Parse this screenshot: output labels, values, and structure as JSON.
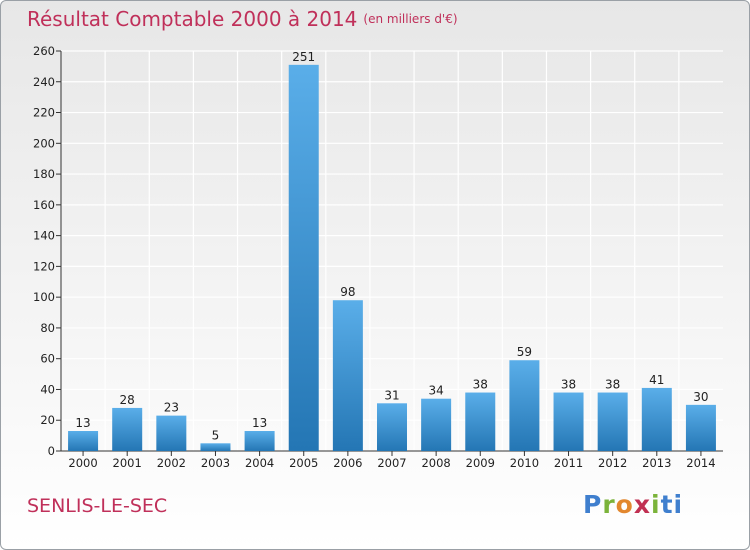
{
  "header": {
    "title": "Résultat Comptable 2000 à 2014",
    "unit": "(en milliers d'€)"
  },
  "footer": {
    "town": "SENLIS-LE-SEC",
    "logo_letters": [
      "P",
      "r",
      "o",
      "x",
      "i",
      "ti"
    ]
  },
  "colors": {
    "bar_top": "#5aaee9",
    "bar_bottom": "#2476b4",
    "title": "#c0305a",
    "grid": "#ffffff"
  },
  "chart_data": {
    "type": "bar",
    "title": "Résultat Comptable 2000 à 2014",
    "subtitle": "(en milliers d'€)",
    "xlabel": "",
    "ylabel": "",
    "categories": [
      "2000",
      "2001",
      "2002",
      "2003",
      "2004",
      "2005",
      "2006",
      "2007",
      "2008",
      "2009",
      "2010",
      "2011",
      "2012",
      "2013",
      "2014"
    ],
    "values": [
      13,
      28,
      23,
      5,
      13,
      251,
      98,
      31,
      34,
      38,
      59,
      38,
      38,
      41,
      30
    ],
    "ylim": [
      0,
      260
    ],
    "yticks": [
      0,
      20,
      40,
      60,
      80,
      100,
      120,
      140,
      160,
      180,
      200,
      220,
      240,
      260
    ],
    "grid": true
  }
}
